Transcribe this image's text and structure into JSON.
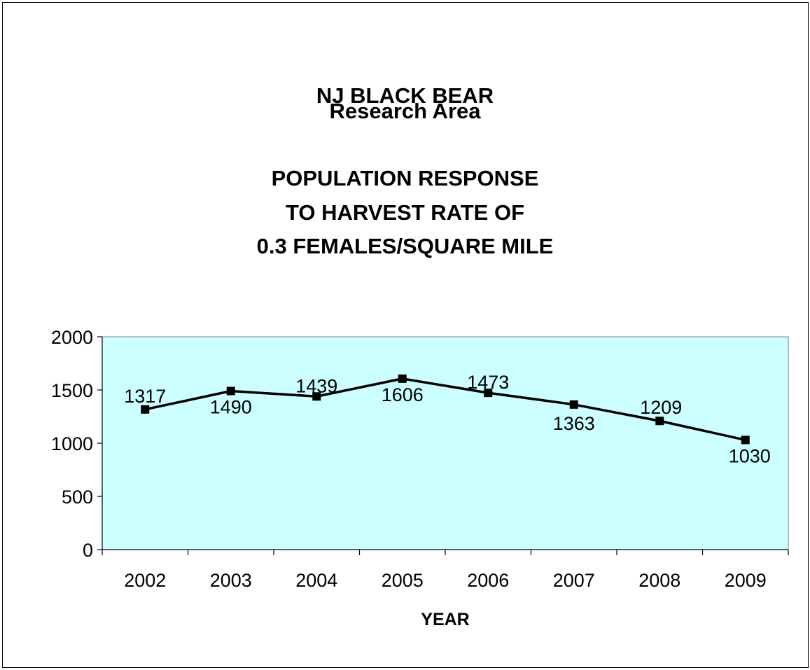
{
  "chart_data": {
    "type": "line",
    "title_lines": [
      "NJ BLACK BEAR",
      "Research Area",
      "POPULATION RESPONSE",
      "TO HARVEST RATE OF",
      "0.3 FEMALES/SQUARE MILE"
    ],
    "xlabel": "YEAR",
    "ylabel": "",
    "categories": [
      "2002",
      "2003",
      "2004",
      "2005",
      "2006",
      "2007",
      "2008",
      "2009"
    ],
    "series": [
      {
        "values": [
          1317,
          1490,
          1439,
          1606,
          1473,
          1363,
          1209,
          1030
        ]
      }
    ],
    "data_labels": [
      "1317",
      "1490",
      "1439",
      "1606",
      "1473",
      "1363",
      "1209",
      "1030"
    ],
    "ylim": [
      0,
      2000
    ],
    "yticks": [
      0,
      500,
      1000,
      1500,
      2000
    ],
    "legend": "none",
    "grid": false,
    "colors": {
      "plot_background": "#ccffff",
      "line": "#000000",
      "marker": "#000000"
    }
  }
}
